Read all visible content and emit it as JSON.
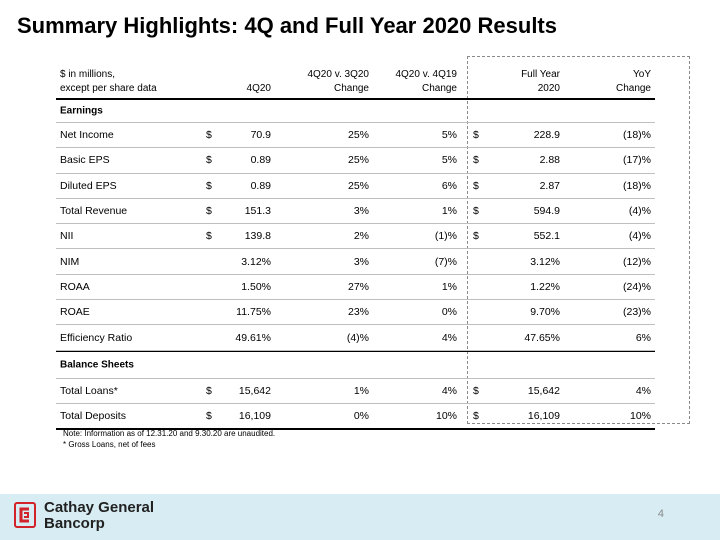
{
  "title": "Summary Highlights: 4Q and Full Year 2020 Results",
  "header": {
    "label_line1": "$ in millions,",
    "label_line2": "except per share data",
    "col1": "4Q20",
    "col2_line1": "4Q20 v. 3Q20",
    "col2_line2": "Change",
    "col3_line1": "4Q20 v. 4Q19",
    "col3_line2": "Change",
    "col4_line1": "Full Year",
    "col4_line2": "2020",
    "col5_line1": "YoY",
    "col5_line2": "Change"
  },
  "sections": {
    "earnings": "Earnings",
    "balance": "Balance Sheets"
  },
  "rows": [
    {
      "label": "Net Income",
      "d1": "$",
      "v1": "70.9",
      "v2": "25%",
      "v3": "5%",
      "d2": "$",
      "v4": "228.9",
      "v5": "(18)%"
    },
    {
      "label": "Basic EPS",
      "d1": "$",
      "v1": "0.89",
      "v2": "25%",
      "v3": "5%",
      "d2": "$",
      "v4": "2.88",
      "v5": "(17)%"
    },
    {
      "label": "Diluted EPS",
      "d1": "$",
      "v1": "0.89",
      "v2": "25%",
      "v3": "6%",
      "d2": "$",
      "v4": "2.87",
      "v5": "(18)%"
    },
    {
      "label": "Total Revenue",
      "d1": "$",
      "v1": "151.3",
      "v2": "3%",
      "v3": "1%",
      "d2": "$",
      "v4": "594.9",
      "v5": "(4)%"
    },
    {
      "label": "NII",
      "d1": "$",
      "v1": "139.8",
      "v2": "2%",
      "v3": "(1)%",
      "d2": "$",
      "v4": "552.1",
      "v5": "(4)%"
    },
    {
      "label": "NIM",
      "d1": "",
      "v1": "3.12%",
      "v2": "3%",
      "v3": "(7)%",
      "d2": "",
      "v4": "3.12%",
      "v5": "(12)%"
    },
    {
      "label": "ROAA",
      "d1": "",
      "v1": "1.50%",
      "v2": "27%",
      "v3": "1%",
      "d2": "",
      "v4": "1.22%",
      "v5": "(24)%"
    },
    {
      "label": "ROAE",
      "d1": "",
      "v1": "11.75%",
      "v2": "23%",
      "v3": "0%",
      "d2": "",
      "v4": "9.70%",
      "v5": "(23)%"
    },
    {
      "label": "Efficiency Ratio",
      "d1": "",
      "v1": "49.61%",
      "v2": "(4)%",
      "v3": "4%",
      "d2": "",
      "v4": "47.65%",
      "v5": "6%"
    }
  ],
  "balance_rows": [
    {
      "label": "Total Loans*",
      "d1": "$",
      "v1": "15,642",
      "v2": "1%",
      "v3": "4%",
      "d2": "$",
      "v4": "15,642",
      "v5": "4%"
    },
    {
      "label": "Total Deposits",
      "d1": "$",
      "v1": "16,109",
      "v2": "0%",
      "v3": "10%",
      "d2": "$",
      "v4": "16,109",
      "v5": "10%"
    }
  ],
  "notes": {
    "line1": "Note: Information as of  12.31.20 and 9.30.20 are unaudited.",
    "line2": "* Gross Loans, net of fees"
  },
  "footer": {
    "logo_line1": "Cathay General",
    "logo_line2": "Bancorp",
    "page_number": "4",
    "brand_color": "#d2232a",
    "band_color": "#d7edf3"
  }
}
